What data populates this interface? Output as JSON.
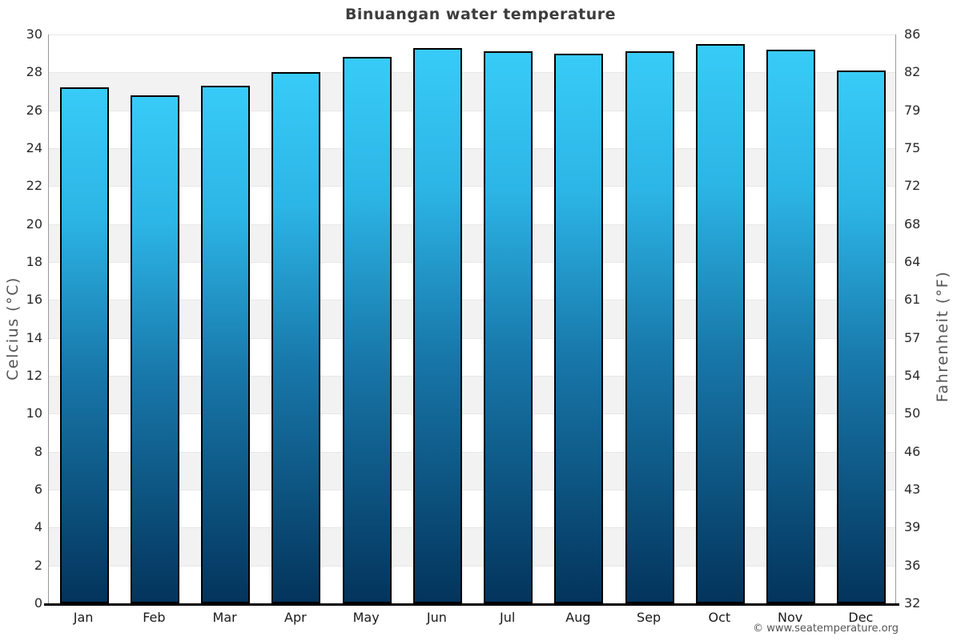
{
  "page": {
    "title": "Binuangan water temperature",
    "copyright": "© www.seatemperature.org"
  },
  "chart_data": {
    "type": "bar",
    "title": "Binuangan water temperature",
    "categories": [
      "Jan",
      "Feb",
      "Mar",
      "Apr",
      "May",
      "Jun",
      "Jul",
      "Aug",
      "Sep",
      "Oct",
      "Nov",
      "Dec"
    ],
    "values": [
      27.2,
      26.8,
      27.3,
      28.0,
      28.8,
      29.3,
      29.1,
      29.0,
      29.1,
      29.5,
      29.2,
      28.1
    ],
    "unit": "°C",
    "ylabel_left": "Celcius (°C)",
    "ylabel_right": "Fahrenheit (°F)",
    "ylim_celsius": [
      0,
      30
    ],
    "yticks_celsius": [
      30,
      28,
      26,
      24,
      22,
      20,
      18,
      16,
      14,
      12,
      10,
      8,
      6,
      4,
      2,
      0
    ],
    "yticks_fahrenheit": [
      86,
      82,
      79,
      75,
      72,
      68,
      64,
      61,
      57,
      54,
      50,
      46,
      43,
      39,
      36,
      32
    ],
    "grid": "horizontal-bands-every-2C",
    "legend": "none",
    "colors": {
      "bar_gradient_top": "#38cbf8",
      "bar_gradient_upper": "#2cb5e6",
      "bar_gradient_mid": "#1878aa",
      "bar_gradient_bottom": "#03345c",
      "bar_border": "#000000",
      "band_fill": "#f2f2f2",
      "gridline": "#e7e7e7",
      "axis_line": "#999999",
      "x_axis_line": "#000000",
      "title_text": "#3d3d3d",
      "tick_text": "#2a2a2a",
      "axis_title_text": "#555555"
    }
  }
}
